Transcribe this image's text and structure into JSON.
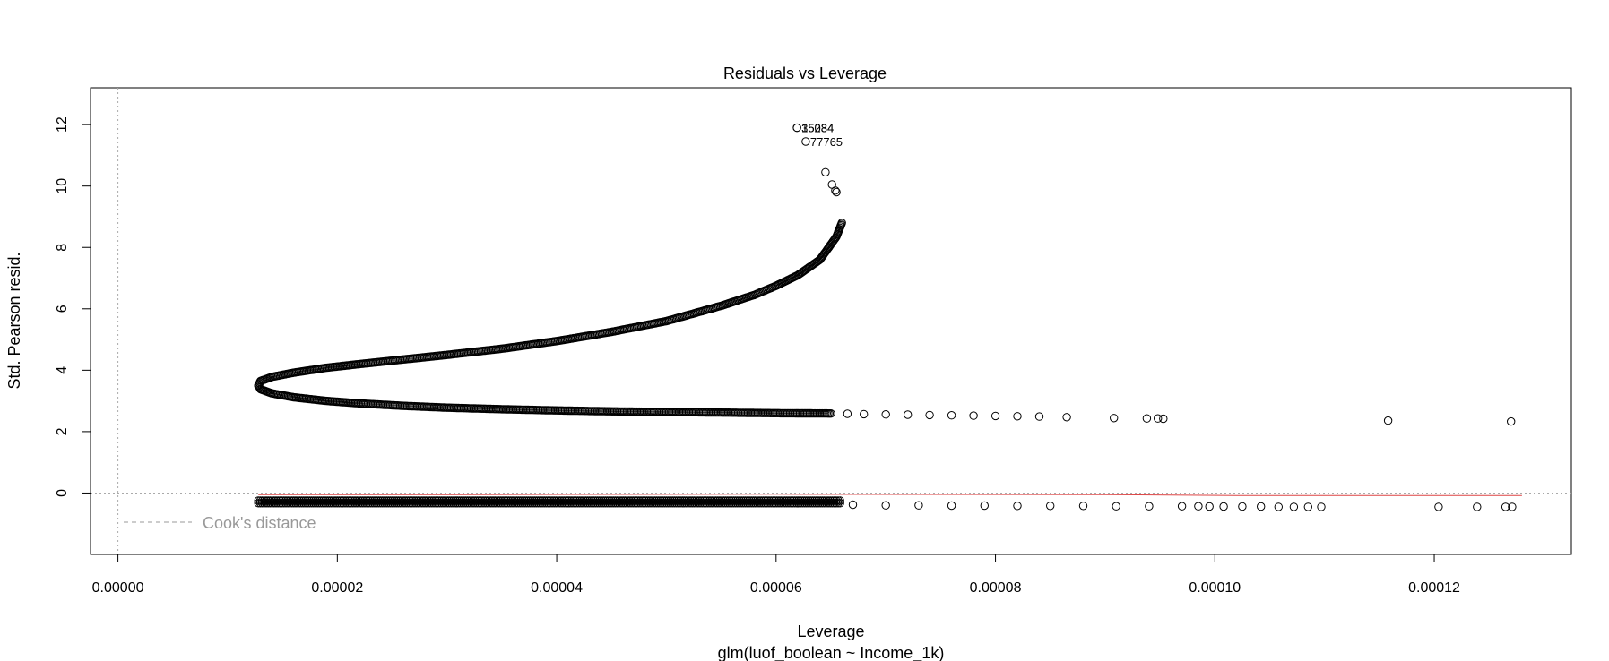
{
  "chart_data": {
    "type": "scatter",
    "title": "Residuals vs Leverage",
    "xlabel": "Leverage",
    "ylabel": "Std. Pearson resid.",
    "subtitle": "glm(luof_boolean ~ Income_1k)",
    "xlim": [
      -2.5e-06,
      0.0001325
    ],
    "ylim": [
      -2,
      13.2
    ],
    "x_ticks": [
      0,
      2e-05,
      4e-05,
      6e-05,
      8e-05,
      0.0001,
      0.00012
    ],
    "x_tick_labels": [
      "0.00000",
      "0.00002",
      "0.00004",
      "0.00006",
      "0.00008",
      "0.00010",
      "0.00012"
    ],
    "y_ticks": [
      0,
      2,
      4,
      6,
      8,
      10,
      12
    ],
    "y_tick_labels": [
      "0",
      "2",
      "4",
      "6",
      "8",
      "10",
      "12"
    ],
    "grid": false,
    "reference_lines": {
      "h": 0,
      "v": 0,
      "style": "dotted",
      "color": "#aaaaaa"
    },
    "legend": {
      "label": "Cook's distance",
      "position": "bottom-left",
      "style": "dashed",
      "color": "#999999"
    },
    "smooth_line": {
      "color": "#dd4444",
      "x": [
        1.28e-05,
        3e-05,
        6e-05,
        9e-05,
        0.000102,
        0.000118,
        0.000128
      ],
      "y": [
        -0.05,
        -0.05,
        -0.04,
        -0.05,
        -0.08,
        -0.08,
        -0.08
      ]
    },
    "series": [
      {
        "upper_curve": {
          "x": [
            1.28e-05,
            1.3e-05,
            1.4e-05,
            1.6e-05,
            1.9e-05,
            2.2e-05,
            2.6e-05,
            3e-05,
            3.5e-05,
            4e-05,
            4.5e-05,
            5e-05,
            5.5e-05,
            5.8e-05,
            6e-05,
            6.2e-05,
            6.3e-05,
            6.4e-05,
            6.45e-05,
            6.5e-05,
            6.55e-05,
            6.6e-05
          ],
          "y": [
            3.5,
            3.65,
            3.78,
            3.92,
            4.08,
            4.2,
            4.35,
            4.5,
            4.7,
            4.95,
            5.25,
            5.6,
            6.1,
            6.45,
            6.75,
            7.1,
            7.35,
            7.6,
            7.85,
            8.1,
            8.35,
            8.8
          ]
        },
        "lower_curve": {
          "x": [
            1.28e-05,
            1.3e-05,
            1.4e-05,
            1.6e-05,
            1.9e-05,
            2.2e-05,
            2.6e-05,
            3e-05,
            3.5e-05,
            4e-05,
            4.5e-05,
            5e-05,
            5.5e-05,
            6e-05,
            6.5e-05
          ],
          "y": [
            3.5,
            3.38,
            3.25,
            3.12,
            3.0,
            2.92,
            2.84,
            2.78,
            2.73,
            2.69,
            2.66,
            2.64,
            2.62,
            2.6,
            2.59
          ]
        },
        "scattered_upper": {
          "x": [
            6.65e-05,
            6.8e-05,
            7e-05,
            7.2e-05,
            7.4e-05,
            7.6e-05,
            7.8e-05,
            8e-05,
            8.2e-05,
            8.4e-05,
            8.65e-05,
            9.08e-05,
            9.38e-05,
            9.48e-05,
            9.53e-05,
            0.0001158,
            0.000127
          ],
          "y": [
            2.58,
            2.57,
            2.56,
            2.55,
            2.54,
            2.53,
            2.52,
            2.51,
            2.5,
            2.49,
            2.47,
            2.44,
            2.43,
            2.43,
            2.42,
            2.36,
            2.33
          ]
        },
        "lower_band": {
          "x_start": 1.28e-05,
          "x_end": 6.6e-05,
          "y": -0.3
        },
        "scattered_lower": {
          "x": [
            6.7e-05,
            7e-05,
            7.3e-05,
            7.6e-05,
            7.9e-05,
            8.2e-05,
            8.5e-05,
            8.8e-05,
            9.1e-05,
            9.4e-05,
            9.7e-05,
            9.85e-05,
            9.95e-05,
            0.0001008,
            0.0001025,
            0.0001042,
            0.0001058,
            0.0001072,
            0.0001085,
            0.0001097,
            0.0001204,
            0.0001239,
            0.0001265,
            0.0001271
          ],
          "y": [
            -0.38,
            -0.4,
            -0.4,
            -0.41,
            -0.41,
            -0.42,
            -0.42,
            -0.42,
            -0.43,
            -0.43,
            -0.43,
            -0.43,
            -0.44,
            -0.44,
            -0.44,
            -0.44,
            -0.45,
            -0.45,
            -0.45,
            -0.45,
            -0.45,
            -0.45,
            -0.45,
            -0.45
          ]
        },
        "outliers": [
          {
            "label": "35084",
            "x": 6.19e-05,
            "y": 11.9
          },
          {
            "label": "15234",
            "x": 6.19e-05,
            "y": 11.9
          },
          {
            "label": "77765",
            "x": 6.27e-05,
            "y": 11.45
          },
          {
            "label": "",
            "x": 6.45e-05,
            "y": 10.45
          },
          {
            "label": "",
            "x": 6.51e-05,
            "y": 10.05
          },
          {
            "label": "",
            "x": 6.54e-05,
            "y": 9.85
          },
          {
            "label": "",
            "x": 6.55e-05,
            "y": 9.8
          }
        ]
      }
    ]
  }
}
